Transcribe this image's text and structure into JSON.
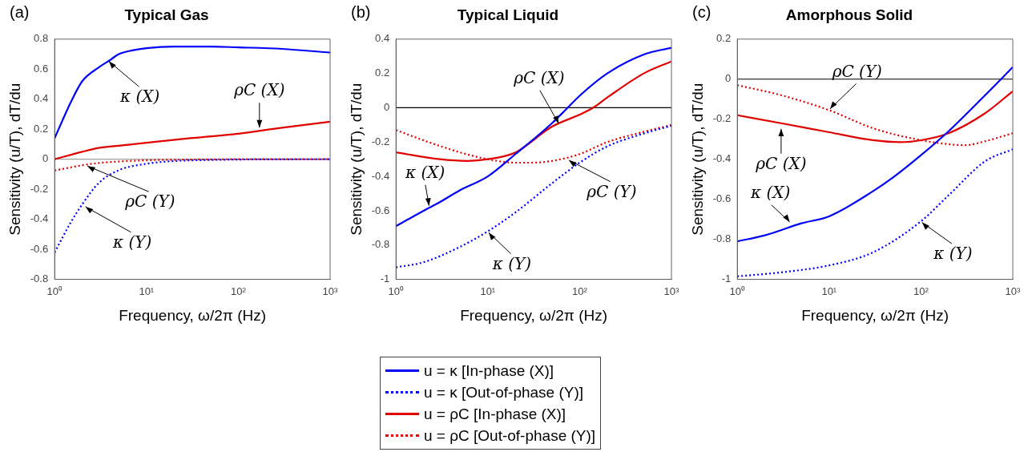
{
  "chart_data": [
    {
      "type": "line",
      "title": "Typical Gas",
      "xlabel": "Frequency, ω/2π (Hz)",
      "ylabel": "Sensitivity (u/T), dT/du",
      "log": "x",
      "legend": false,
      "xlim": [
        1,
        1000
      ],
      "ylim": [
        -0.8,
        0.8
      ],
      "xticks": [
        {
          "value": 1,
          "label": "10⁰"
        },
        {
          "value": 10,
          "label": "10¹"
        },
        {
          "value": 100,
          "label": "10²"
        },
        {
          "value": 1000,
          "label": "10³"
        }
      ],
      "yticks": [
        -0.8,
        -0.6,
        -0.4,
        -0.2,
        0,
        0.2,
        0.4,
        0.6,
        0.8
      ],
      "ref_lines": [
        {
          "axis": "y",
          "value": 0,
          "color": "#a0a0a0"
        }
      ],
      "annotations": [
        "(a)",
        {
          "text": "κ (X)",
          "x": 3.8,
          "y": 0.66
        },
        {
          "text": "ρC (X)",
          "x": 170,
          "y": 0.2
        },
        {
          "text": "ρC (Y)",
          "x": 2.2,
          "y": -0.04
        },
        {
          "text": "κ (Y)",
          "x": 2.1,
          "y": -0.31
        }
      ],
      "series": [
        {
          "color": "#0000ff",
          "line_style": "solid",
          "x": [
            1,
            1.5,
            2,
            3,
            4,
            5,
            7,
            10,
            20,
            50,
            100,
            300,
            1000
          ],
          "values": [
            0.14,
            0.38,
            0.52,
            0.61,
            0.66,
            0.7,
            0.725,
            0.74,
            0.75,
            0.75,
            0.745,
            0.735,
            0.71
          ]
        },
        {
          "color": "#0000ff",
          "line_style": "dotted",
          "x": [
            1,
            1.5,
            2,
            3,
            5,
            10,
            20,
            50,
            100,
            1000
          ],
          "values": [
            -0.62,
            -0.42,
            -0.3,
            -0.16,
            -0.073,
            -0.03,
            -0.012,
            -0.005,
            -0.002,
            0
          ]
        },
        {
          "color": "#e00000",
          "line_style": "solid",
          "x": [
            1,
            2,
            3,
            5,
            10,
            30,
            100,
            300,
            1000
          ],
          "values": [
            0,
            0.05,
            0.075,
            0.09,
            0.11,
            0.14,
            0.17,
            0.21,
            0.25
          ]
        },
        {
          "color": "#e00000",
          "line_style": "dotted",
          "x": [
            1,
            2,
            3,
            5,
            10,
            30,
            100,
            1000
          ],
          "values": [
            -0.075,
            -0.04,
            -0.025,
            -0.015,
            -0.007,
            -0.002,
            0,
            0
          ]
        }
      ]
    },
    {
      "type": "line",
      "title": "Typical Liquid",
      "xlabel": "Frequency, ω/2π (Hz)",
      "ylabel": "Sensitivity (u/T), dT/du",
      "log": "x",
      "legend": "bottom",
      "xlim": [
        1,
        1000
      ],
      "ylim": [
        -1,
        0.4
      ],
      "xticks": [
        {
          "value": 1,
          "label": "10⁰"
        },
        {
          "value": 10,
          "label": "10¹"
        },
        {
          "value": 100,
          "label": "10²"
        },
        {
          "value": 1000,
          "label": "10³"
        }
      ],
      "yticks": [
        -1,
        -0.8,
        -0.6,
        -0.4,
        -0.2,
        0,
        0.2,
        0.4
      ],
      "ref_lines": [
        {
          "axis": "y",
          "value": 0,
          "color": "#000000"
        }
      ],
      "annotations": [
        "(b)",
        {
          "text": "ρC (X)",
          "x": 60,
          "y": -0.1
        },
        {
          "text": "κ (X)",
          "x": 2.3,
          "y": -0.58
        },
        {
          "text": "ρC (Y)",
          "x": 74,
          "y": -0.3
        },
        {
          "text": "κ (Y)",
          "x": 10,
          "y": -0.72
        }
      ],
      "series": [
        {
          "name": "u = κ [In-phase (X)]",
          "color": "#0000ff",
          "line_style": "solid",
          "x": [
            1,
            2,
            3,
            5,
            10,
            20,
            50,
            74,
            100,
            200,
            500,
            1000
          ],
          "values": [
            -0.69,
            -0.6,
            -0.55,
            -0.48,
            -0.4,
            -0.27,
            -0.09,
            0,
            0.07,
            0.2,
            0.31,
            0.35
          ]
        },
        {
          "name": "u = κ [Out-of-phase (Y)]",
          "color": "#0000ff",
          "line_style": "dotted",
          "x": [
            1,
            2,
            5,
            10,
            20,
            50,
            100,
            200,
            500,
            1000
          ],
          "values": [
            -0.93,
            -0.9,
            -0.81,
            -0.72,
            -0.61,
            -0.44,
            -0.32,
            -0.225,
            -0.15,
            -0.105
          ]
        },
        {
          "name": "u = ρC [In-phase (X)]",
          "color": "#e00000",
          "line_style": "solid",
          "x": [
            1,
            3,
            6,
            10,
            20,
            50,
            100,
            140,
            200,
            500,
            1000
          ],
          "values": [
            -0.26,
            -0.3,
            -0.31,
            -0.3,
            -0.26,
            -0.11,
            -0.04,
            0,
            0.06,
            0.2,
            0.27
          ]
        },
        {
          "name": "u = ρC [Out-of-phase (Y)]",
          "color": "#e00000",
          "line_style": "dotted",
          "x": [
            1,
            2,
            5,
            10,
            20,
            30,
            50,
            100,
            200,
            500,
            1000
          ],
          "values": [
            -0.13,
            -0.19,
            -0.26,
            -0.3,
            -0.32,
            -0.32,
            -0.31,
            -0.27,
            -0.2,
            -0.14,
            -0.1
          ]
        }
      ]
    },
    {
      "type": "line",
      "title": "Amorphous Solid",
      "xlabel": "Frequency, ω/2π (Hz)",
      "ylabel": "Sensitivity (u/T), dT/du",
      "log": "x",
      "legend": false,
      "xlim": [
        1,
        1000
      ],
      "ylim": [
        -1,
        0.2
      ],
      "xticks": [
        {
          "value": 1,
          "label": "10⁰"
        },
        {
          "value": 10,
          "label": "10¹"
        },
        {
          "value": 100,
          "label": "10²"
        },
        {
          "value": 1000,
          "label": "10³"
        }
      ],
      "yticks": [
        -1,
        -0.8,
        -0.6,
        -0.4,
        -0.2,
        0,
        0.2
      ],
      "ref_lines": [
        {
          "axis": "y",
          "value": 0,
          "color": "#000000"
        }
      ],
      "annotations": [
        "(c)",
        {
          "text": "ρC (Y)",
          "x": 10,
          "y": -0.155
        },
        {
          "text": "ρC (X)",
          "x": 3,
          "y": -0.24
        },
        {
          "text": "κ (X)",
          "x": 3.8,
          "y": -0.72
        },
        {
          "text": "κ (Y)",
          "x": 100,
          "y": -0.71
        }
      ],
      "series": [
        {
          "color": "#0000ff",
          "line_style": "solid",
          "x": [
            1,
            2,
            5,
            10,
            30,
            50,
            100,
            200,
            500,
            1000
          ],
          "values": [
            -0.81,
            -0.78,
            -0.72,
            -0.685,
            -0.56,
            -0.49,
            -0.38,
            -0.26,
            -0.08,
            0.06
          ]
        },
        {
          "color": "#0000ff",
          "line_style": "dotted",
          "x": [
            1,
            3,
            10,
            30,
            100,
            200,
            500,
            1000
          ],
          "values": [
            -0.985,
            -0.965,
            -0.93,
            -0.865,
            -0.71,
            -0.58,
            -0.41,
            -0.35
          ]
        },
        {
          "color": "#e00000",
          "line_style": "solid",
          "x": [
            1,
            3,
            10,
            30,
            60,
            100,
            200,
            500,
            1000
          ],
          "values": [
            -0.18,
            -0.22,
            -0.265,
            -0.305,
            -0.315,
            -0.305,
            -0.27,
            -0.17,
            -0.06
          ]
        },
        {
          "color": "#e00000",
          "line_style": "dotted",
          "x": [
            1,
            3,
            10,
            30,
            100,
            200,
            300,
            500,
            1000
          ],
          "values": [
            -0.03,
            -0.08,
            -0.155,
            -0.245,
            -0.305,
            -0.325,
            -0.33,
            -0.31,
            -0.27
          ]
        }
      ]
    }
  ]
}
